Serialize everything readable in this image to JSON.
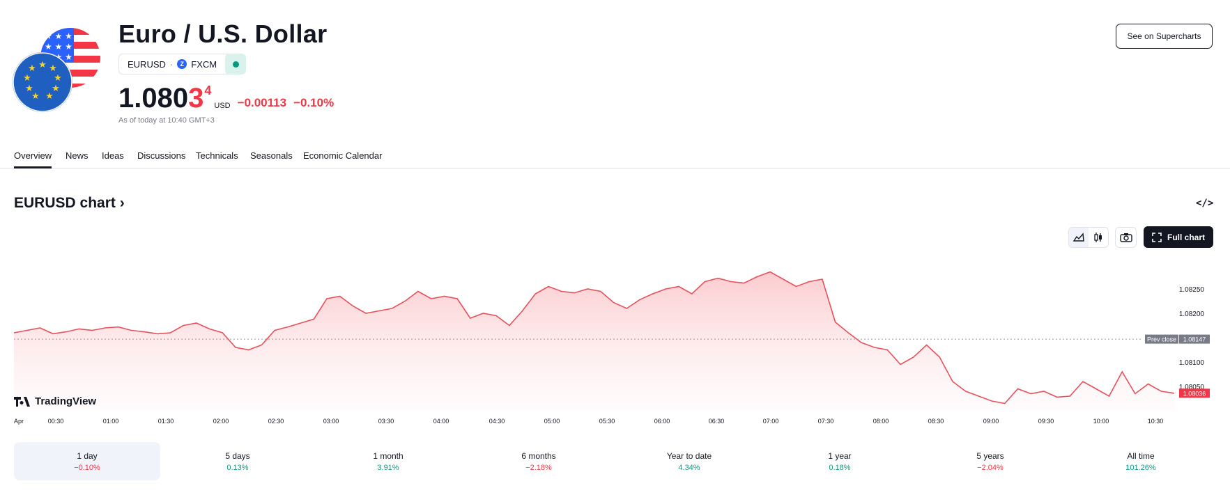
{
  "header": {
    "title": "Euro / U.S. Dollar",
    "symbol": "EURUSD",
    "exchange": "FXCM",
    "price_main": "1.080",
    "price_highlight": "3",
    "price_superscript": "4",
    "currency": "USD",
    "change": "−0.00113",
    "change_percent": "−0.10%",
    "as_of": "As of today at 10:40 GMT+3",
    "supercharts_button": "See on Supercharts"
  },
  "tabs": [
    "Overview",
    "News",
    "Ideas",
    "Discussions",
    "Technicals",
    "Seasonals",
    "Economic Calendar"
  ],
  "active_tab": "Overview",
  "chart_section": {
    "title": "EURUSD chart ›",
    "full_chart_button": "Full chart",
    "branding": "TradingView"
  },
  "colors": {
    "line": "#e8505b",
    "fill_top": "#fbc9cc",
    "negative": "#f23645",
    "positive": "#089981",
    "market_open": "#089981"
  },
  "chart_data": {
    "type": "area",
    "x_labels": [
      "Apr",
      "00:30",
      "01:00",
      "01:30",
      "02:00",
      "02:30",
      "03:00",
      "03:30",
      "04:00",
      "04:30",
      "05:00",
      "05:30",
      "06:00",
      "06:30",
      "07:00",
      "07:30",
      "08:00",
      "08:30",
      "09:00",
      "09:30",
      "10:00",
      "10:30"
    ],
    "y_ticks": [
      "1.08250",
      "1.08200",
      "1.08100",
      "1.08050"
    ],
    "ylim": [
      1.08,
      1.083
    ],
    "prev_close_label": "Prev close",
    "prev_close": 1.08147,
    "prev_close_text": "1.08147",
    "last_price": 1.08036,
    "last_price_text": "1.08036",
    "series": [
      {
        "values": [
          1.0816,
          1.08165,
          1.0817,
          1.08158,
          1.08162,
          1.08168,
          1.08165,
          1.0817,
          1.08172,
          1.08165,
          1.08162,
          1.08158,
          1.0816,
          1.08175,
          1.0818,
          1.08168,
          1.0816,
          1.0813,
          1.08125,
          1.08135,
          1.08165,
          1.08172,
          1.0818,
          1.08188,
          1.0823,
          1.08235,
          1.08215,
          1.082,
          1.08205,
          1.0821,
          1.08225,
          1.08245,
          1.0823,
          1.08235,
          1.0823,
          1.0819,
          1.082,
          1.08195,
          1.08175,
          1.08205,
          1.0824,
          1.08255,
          1.08245,
          1.08242,
          1.0825,
          1.08245,
          1.08222,
          1.0821,
          1.08228,
          1.0824,
          1.0825,
          1.08255,
          1.0824,
          1.08265,
          1.08272,
          1.08265,
          1.08262,
          1.08275,
          1.08285,
          1.0827,
          1.08255,
          1.08265,
          1.0827,
          1.08182,
          1.0816,
          1.0814,
          1.0813,
          1.08125,
          1.08095,
          1.0811,
          1.08135,
          1.0811,
          1.0806,
          1.0804,
          1.0803,
          1.0802,
          1.08015,
          1.08045,
          1.08035,
          1.0804,
          1.08028,
          1.0803,
          1.0806,
          1.08045,
          1.0803,
          1.0808,
          1.08035,
          1.08055,
          1.0804,
          1.08036
        ]
      }
    ]
  },
  "periods": [
    {
      "label": "1 day",
      "value": "−0.10%",
      "dir": "neg"
    },
    {
      "label": "5 days",
      "value": "0.13%",
      "dir": "pos"
    },
    {
      "label": "1 month",
      "value": "3.91%",
      "dir": "pos"
    },
    {
      "label": "6 months",
      "value": "−2.18%",
      "dir": "neg"
    },
    {
      "label": "Year to date",
      "value": "4.34%",
      "dir": "pos"
    },
    {
      "label": "1 year",
      "value": "0.18%",
      "dir": "pos"
    },
    {
      "label": "5 years",
      "value": "−2.04%",
      "dir": "neg"
    },
    {
      "label": "All time",
      "value": "101.26%",
      "dir": "pos"
    }
  ],
  "active_period": "1 day"
}
